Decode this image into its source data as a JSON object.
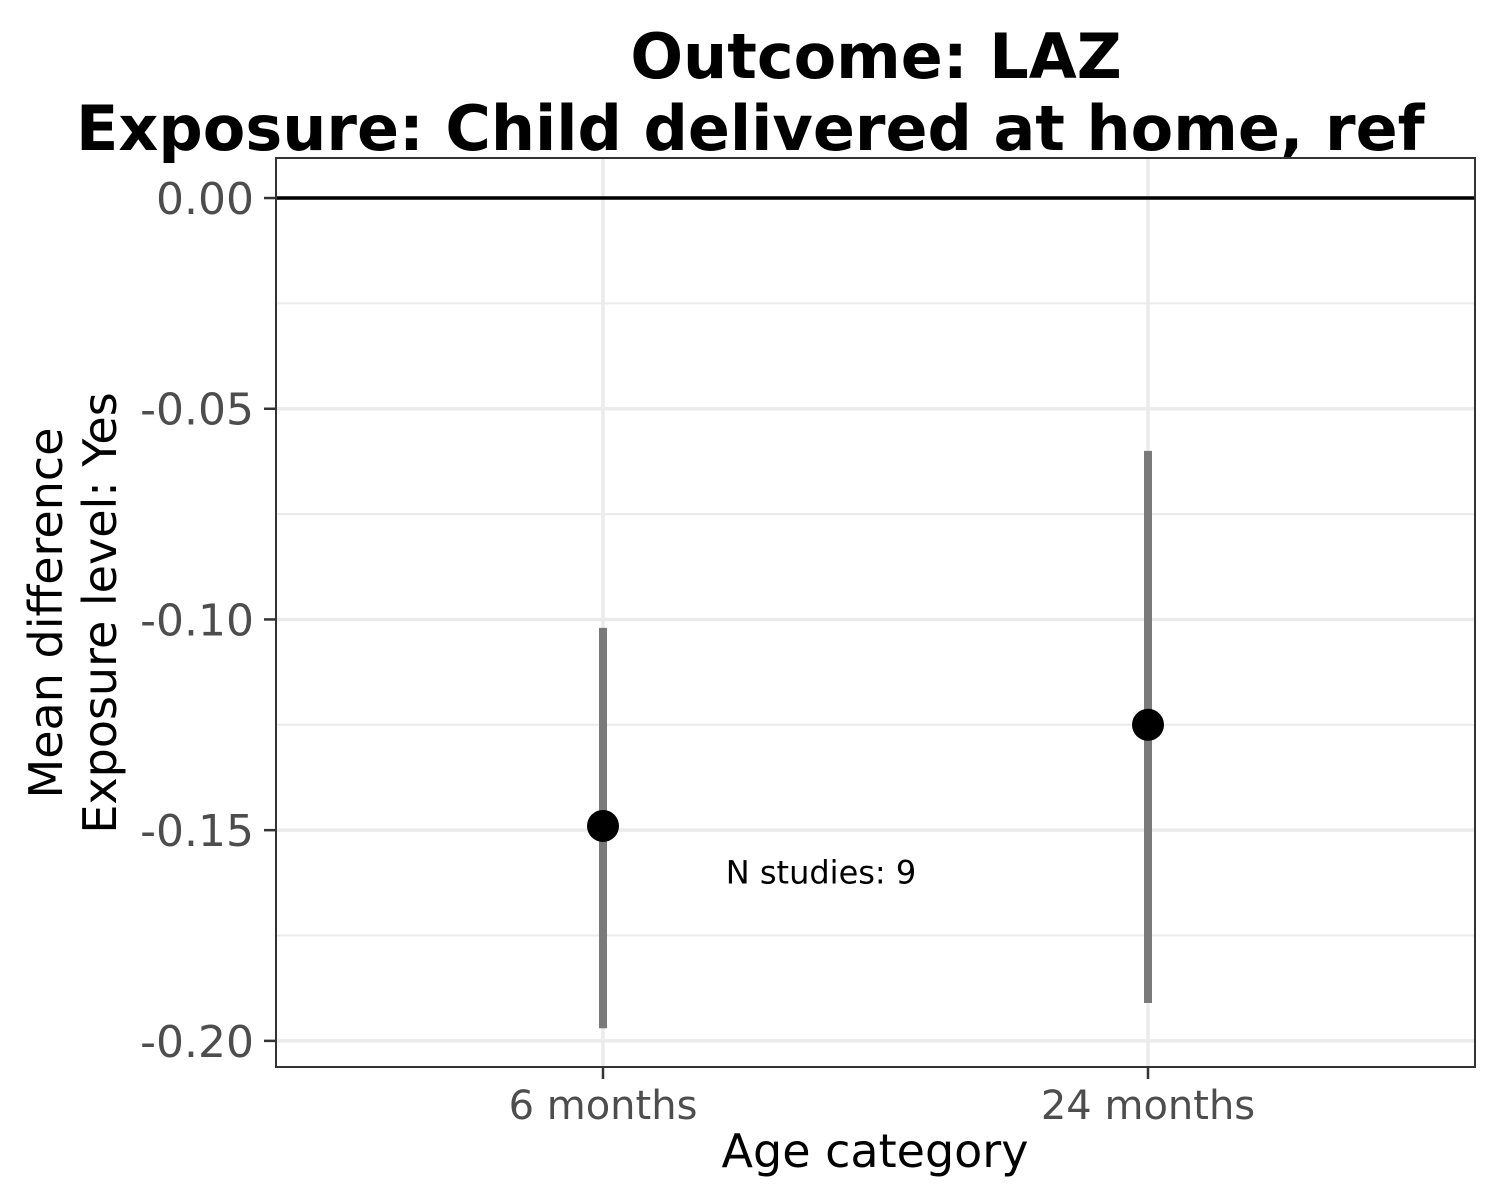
{
  "chart_data": {
    "type": "point-range",
    "title_line1": "Outcome: LAZ",
    "title_line2": "Exposure: Child delivered at home, ref",
    "xlabel": "Age category",
    "ylabel_line1": "Mean difference",
    "ylabel_line2": "Exposure level: Yes",
    "categories": [
      "6 months",
      "24 months"
    ],
    "estimates": [
      -0.149,
      -0.125
    ],
    "ci_lower": [
      -0.197,
      -0.191
    ],
    "ci_upper": [
      -0.102,
      -0.06
    ],
    "ylim": [
      -0.2062,
      0.0095
    ],
    "yticks": [
      0.0,
      -0.05,
      -0.1,
      -0.15,
      -0.2
    ],
    "ytick_labels": [
      "0.00",
      "-0.05",
      "-0.10",
      "-0.15",
      "-0.20"
    ],
    "reference_line": 0.0,
    "annotation": {
      "text": "N studies: 9",
      "x_category_offset": 0.4,
      "y": -0.16
    },
    "grid": true,
    "colors": {
      "point": "#000000",
      "ci": "#7a7a7a",
      "grid": "#ebebeb",
      "refline": "#000000",
      "panel_border": "#333333"
    }
  }
}
